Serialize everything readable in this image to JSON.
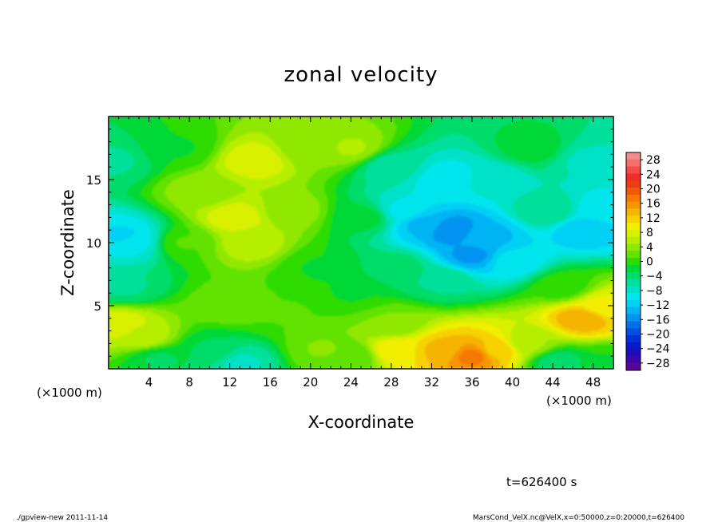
{
  "chart_data": {
    "type": "heatmap",
    "title": "zonal velocity",
    "xlabel": "X-coordinate",
    "ylabel": "Z-coordinate",
    "x_unit_left": "(×1000 m)",
    "x_unit_right": "(×1000 m)",
    "xlim": [
      0,
      50
    ],
    "ylim": [
      0,
      20
    ],
    "xticks": [
      4,
      8,
      12,
      16,
      20,
      24,
      28,
      32,
      36,
      40,
      44,
      48
    ],
    "yticks": [
      5,
      10,
      15
    ],
    "time_label": "t=626400 s",
    "colorbar": {
      "tick_labels": [
        "28",
        "24",
        "20",
        "16",
        "12",
        "8",
        "4",
        "0",
        "−4",
        "−8",
        "−12",
        "−16",
        "−20",
        "−24",
        "−28"
      ],
      "levels": [
        30,
        28,
        26,
        24,
        22,
        20,
        18,
        16,
        14,
        12,
        10,
        8,
        6,
        4,
        2,
        0,
        -2,
        -4,
        -6,
        -8,
        -10,
        -12,
        -14,
        -16,
        -18,
        -20,
        -22,
        -24,
        -26,
        -28,
        -30
      ],
      "colors": [
        "#f08c8c",
        "#f46e6e",
        "#f84a4a",
        "#f42a28",
        "#ee3c14",
        "#f05a0a",
        "#f57800",
        "#f79500",
        "#f5b400",
        "#f5d200",
        "#f2ee00",
        "#d8f000",
        "#b6ee00",
        "#90e800",
        "#62e200",
        "#2edc00",
        "#00d838",
        "#00dc6a",
        "#00e09a",
        "#00e2c8",
        "#00e6ec",
        "#00d0f4",
        "#00b4f4",
        "#0094f0",
        "#0072e8",
        "#0050e0",
        "#0030d8",
        "#0818cc",
        "#200cbc",
        "#3c06a8",
        "#5a0496"
      ]
    },
    "field_points": [
      {
        "x": 1.5,
        "z": 10.5,
        "u": -11
      },
      {
        "x": 2.5,
        "z": 10.0,
        "u": -9
      },
      {
        "x": 0.5,
        "z": 16.5,
        "u": -5
      },
      {
        "x": 1.5,
        "z": 6.5,
        "u": -5
      },
      {
        "x": 1.0,
        "z": 3.5,
        "u": 8
      },
      {
        "x": 3.5,
        "z": 2.5,
        "u": 6
      },
      {
        "x": 5.0,
        "z": 0.8,
        "u": -3
      },
      {
        "x": 7.0,
        "z": 17.5,
        "u": -1
      },
      {
        "x": 7.5,
        "z": 10.0,
        "u": 1
      },
      {
        "x": 9.5,
        "z": 14.0,
        "u": 4
      },
      {
        "x": 12.5,
        "z": 12.0,
        "u": 8
      },
      {
        "x": 14.0,
        "z": 10.0,
        "u": 6
      },
      {
        "x": 14.5,
        "z": 16.5,
        "u": 8
      },
      {
        "x": 12.0,
        "z": 5.0,
        "u": 2
      },
      {
        "x": 13.0,
        "z": 0.5,
        "u": -7
      },
      {
        "x": 10.0,
        "z": 1.5,
        "u": -3
      },
      {
        "x": 18.0,
        "z": 12.5,
        "u": 4
      },
      {
        "x": 18.0,
        "z": 4.5,
        "u": 1
      },
      {
        "x": 20.0,
        "z": 17.5,
        "u": 3
      },
      {
        "x": 21.0,
        "z": 8.0,
        "u": -1
      },
      {
        "x": 21.5,
        "z": 1.5,
        "u": 3
      },
      {
        "x": 24.0,
        "z": 17.5,
        "u": 5
      },
      {
        "x": 25.5,
        "z": 12.0,
        "u": -2
      },
      {
        "x": 24.0,
        "z": 6.0,
        "u": -1
      },
      {
        "x": 24.0,
        "z": 1.0,
        "u": 1
      },
      {
        "x": 28.0,
        "z": 16.0,
        "u": -6
      },
      {
        "x": 29.0,
        "z": 12.5,
        "u": -9
      },
      {
        "x": 28.5,
        "z": 8.0,
        "u": -4
      },
      {
        "x": 28.0,
        "z": 3.5,
        "u": 3
      },
      {
        "x": 28.5,
        "z": 1.5,
        "u": 10
      },
      {
        "x": 31.0,
        "z": 11.5,
        "u": -13
      },
      {
        "x": 34.0,
        "z": 11.0,
        "u": -16
      },
      {
        "x": 36.0,
        "z": 9.0,
        "u": -15
      },
      {
        "x": 37.5,
        "z": 10.5,
        "u": -13
      },
      {
        "x": 33.5,
        "z": 15.0,
        "u": -10
      },
      {
        "x": 38.0,
        "z": 15.0,
        "u": -8
      },
      {
        "x": 40.0,
        "z": 8.5,
        "u": -10
      },
      {
        "x": 33.0,
        "z": 7.0,
        "u": -5
      },
      {
        "x": 33.0,
        "z": 1.5,
        "u": 13
      },
      {
        "x": 36.0,
        "z": 1.0,
        "u": 17
      },
      {
        "x": 38.5,
        "z": 1.5,
        "u": 12
      },
      {
        "x": 41.5,
        "z": 2.0,
        "u": 5
      },
      {
        "x": 42.0,
        "z": 17.5,
        "u": -2
      },
      {
        "x": 43.5,
        "z": 12.5,
        "u": -5
      },
      {
        "x": 47.0,
        "z": 11.0,
        "u": -12
      },
      {
        "x": 49.0,
        "z": 12.5,
        "u": -10
      },
      {
        "x": 47.5,
        "z": 16.5,
        "u": -7
      },
      {
        "x": 45.0,
        "z": 6.5,
        "u": 0
      },
      {
        "x": 47.0,
        "z": 4.0,
        "u": 14
      },
      {
        "x": 49.0,
        "z": 5.0,
        "u": 9
      },
      {
        "x": 44.5,
        "z": 0.5,
        "u": -4
      },
      {
        "x": 49.5,
        "z": 0.5,
        "u": -1
      }
    ]
  },
  "footer": {
    "left": "./gpview-new  2011-11-14",
    "right": "MarsCond_VelX.nc@VelX,x=0:50000,z=0:20000,t=626400"
  }
}
